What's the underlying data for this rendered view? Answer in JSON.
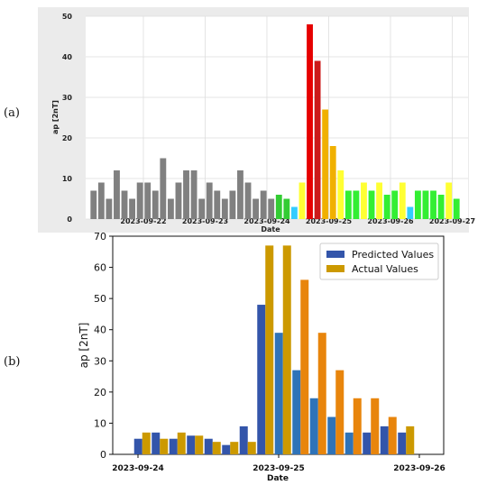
{
  "panels": {
    "a": "(a)",
    "b": "(b)"
  },
  "chart_data": [
    {
      "type": "bar",
      "panel": "(a)",
      "xlabel": "Date",
      "ylabel": "ap [2nT]",
      "ylim": [
        0,
        50
      ],
      "yticks": [
        0,
        10,
        20,
        30,
        40,
        50
      ],
      "grid": true,
      "background": "#ebebeb",
      "x_tick_labels": [
        "2023-09-22",
        "2023-09-23",
        "2023-09-24",
        "2023-09-25",
        "2023-09-26",
        "2023-09-27"
      ],
      "x_start": "2023-09-21 00:00",
      "bar_interval": "3h",
      "values": [
        7,
        9,
        5,
        12,
        7,
        5,
        9,
        9,
        7,
        15,
        5,
        9,
        12,
        12,
        5,
        9,
        7,
        5,
        7,
        12,
        9,
        5,
        7,
        5,
        6,
        5,
        3,
        9,
        48,
        39,
        27,
        18,
        12,
        7,
        7,
        9,
        7,
        9,
        6,
        7,
        9,
        3,
        7,
        7,
        7,
        6,
        9,
        5
      ],
      "colors": [
        "#808080",
        "#808080",
        "#808080",
        "#808080",
        "#808080",
        "#808080",
        "#808080",
        "#808080",
        "#808080",
        "#808080",
        "#808080",
        "#808080",
        "#808080",
        "#808080",
        "#808080",
        "#808080",
        "#808080",
        "#808080",
        "#808080",
        "#808080",
        "#808080",
        "#808080",
        "#808080",
        "#808080",
        "#33cc33",
        "#33cc33",
        "#33ccff",
        "#ffff33",
        "#e60000",
        "#cc1a1a",
        "#f0b000",
        "#f0b000",
        "#ffff33",
        "#33ee33",
        "#33ee33",
        "#ffff33",
        "#33ee33",
        "#ffff33",
        "#33ee33",
        "#33ee33",
        "#ffff33",
        "#33ccff",
        "#33ee33",
        "#33ee33",
        "#33ee33",
        "#33ee33",
        "#ffff33",
        "#33ee33"
      ]
    },
    {
      "type": "bar",
      "panel": "(b)",
      "xlabel": "Date",
      "ylabel": "ap [2nT]",
      "ylim": [
        0,
        70
      ],
      "yticks": [
        0,
        10,
        20,
        30,
        40,
        50,
        60,
        70
      ],
      "x_tick_labels": [
        "2023-09-24",
        "2023-09-25",
        "2023-09-26"
      ],
      "x_start": "2023-09-24 00:00",
      "bar_interval": "3h",
      "series": [
        {
          "name": "Predicted Values",
          "color": "#3355aa",
          "values": [
            5,
            7,
            5,
            6,
            5,
            3,
            9,
            48,
            39,
            27,
            18,
            12,
            7,
            7,
            9,
            7
          ]
        },
        {
          "name": "Actual Values",
          "color": "#cc9900",
          "values": [
            7,
            5,
            7,
            6,
            4,
            4,
            4,
            67,
            67,
            56,
            39,
            27,
            18,
            18,
            12,
            9
          ]
        }
      ]
    }
  ]
}
